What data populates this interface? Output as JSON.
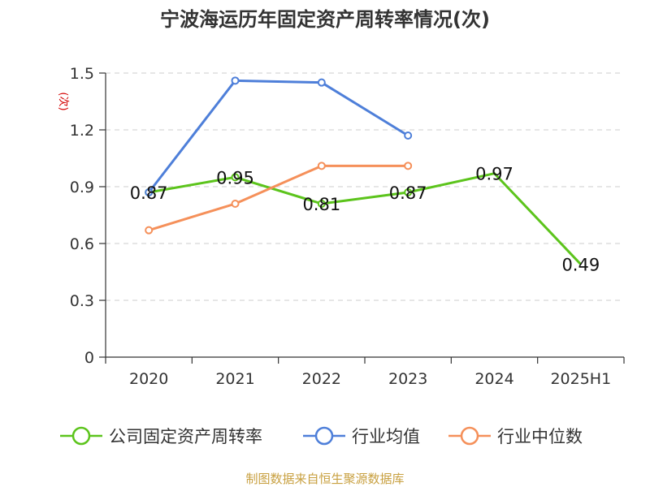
{
  "chart_data": {
    "type": "line",
    "title": "宁波海运历年固定资产周转率情况(次)",
    "ylabel": "(次)",
    "xlabel": "",
    "categories": [
      "2020",
      "2021",
      "2022",
      "2023",
      "2024",
      "2025H1"
    ],
    "ylim": [
      0,
      1.5
    ],
    "yticks": [
      "0",
      "0.3",
      "0.6",
      "0.9",
      "1.2",
      "1.5"
    ],
    "ytick_values": [
      0,
      0.3,
      0.6,
      0.9,
      1.2,
      1.5
    ],
    "grid": true,
    "legend_position": "bottom",
    "series": [
      {
        "name": "公司固定资产周转率",
        "color": "#5cc41c",
        "values": [
          0.87,
          0.95,
          0.81,
          0.87,
          0.97,
          0.49
        ],
        "labels": [
          "0.87",
          "0.95",
          "0.81",
          "0.87",
          "0.97",
          "0.49"
        ],
        "markers_at": [
          0,
          1,
          2,
          3
        ]
      },
      {
        "name": "行业均值",
        "color": "#4e7fd9",
        "values": [
          0.87,
          1.46,
          1.45,
          1.17,
          null,
          null
        ]
      },
      {
        "name": "行业中位数",
        "color": "#f5905a",
        "values": [
          0.67,
          0.81,
          1.01,
          1.01,
          null,
          null
        ]
      }
    ],
    "source": "制图数据来自恒生聚源数据库"
  }
}
